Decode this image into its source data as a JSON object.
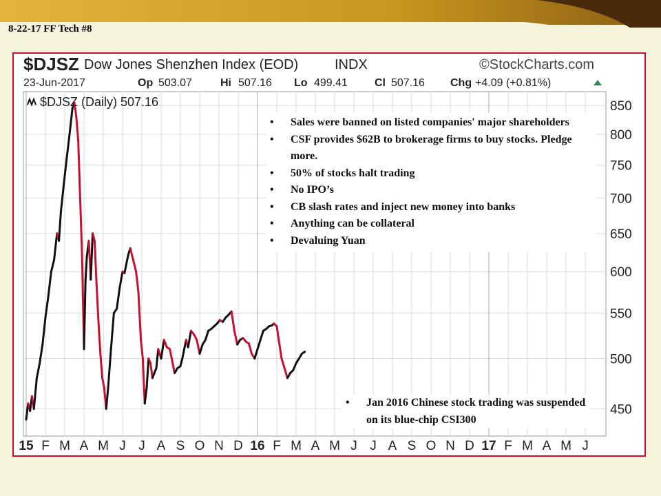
{
  "slide": {
    "label": "8-22-17 FF Tech #8"
  },
  "header": {
    "symbol": "$DJSZ",
    "name": "Dow Jones Shenzhen Index (EOD)",
    "exchange": "INDX",
    "source": "©StockCharts.com",
    "date": "23-Jun-2017",
    "op_label": "Op",
    "op": "503.07",
    "hi_label": "Hi",
    "hi": "507.16",
    "lo_label": "Lo",
    "lo": "499.41",
    "cl_label": "Cl",
    "cl": "507.16",
    "chg_label": "Chg",
    "chg": "+4.09 (+0.81%)"
  },
  "legend": {
    "text": "$DJSZ (Daily) 507.16"
  },
  "annotations": {
    "policies": [
      "Sales were banned on listed companies' major shareholders",
      "CSF provides $62B to brokerage firms to buy stocks. Pledge more.",
      "50% of stocks halt trading",
      "No IPO’s",
      "CB slash rates and inject new money into banks",
      "Anything  can be collateral",
      "Devaluing Yuan"
    ],
    "note": "Jan 2016 Chinese stock trading was suspended on its blue-chip CSI300"
  },
  "colors": {
    "up": "#111111",
    "down": "#c8102e",
    "frame": "#c8102e",
    "grid": "#d9d9d9",
    "chg_arrow": "#2e8b57"
  },
  "chart_data": {
    "type": "line",
    "title": "$DJSZ Dow Jones Shenzhen Index (EOD)",
    "series": [
      {
        "name": "$DJSZ (Daily) 507.16",
        "points": [
          [
            0.0,
            440
          ],
          [
            0.1,
            455
          ],
          [
            0.2,
            448
          ],
          [
            0.3,
            462
          ],
          [
            0.4,
            450
          ],
          [
            0.55,
            480
          ],
          [
            0.7,
            495
          ],
          [
            0.85,
            515
          ],
          [
            1.0,
            545
          ],
          [
            1.15,
            570
          ],
          [
            1.3,
            600
          ],
          [
            1.45,
            615
          ],
          [
            1.6,
            650
          ],
          [
            1.7,
            640
          ],
          [
            1.8,
            680
          ],
          [
            1.95,
            720
          ],
          [
            2.1,
            760
          ],
          [
            2.25,
            800
          ],
          [
            2.4,
            845
          ],
          [
            2.5,
            855
          ],
          [
            2.6,
            830
          ],
          [
            2.7,
            790
          ],
          [
            2.8,
            700
          ],
          [
            2.9,
            620
          ],
          [
            3.0,
            510
          ],
          [
            3.08,
            590
          ],
          [
            3.15,
            620
          ],
          [
            3.25,
            640
          ],
          [
            3.35,
            590
          ],
          [
            3.45,
            650
          ],
          [
            3.55,
            640
          ],
          [
            3.65,
            585
          ],
          [
            3.75,
            540
          ],
          [
            3.85,
            505
          ],
          [
            3.95,
            480
          ],
          [
            4.05,
            470
          ],
          [
            4.15,
            450
          ],
          [
            4.25,
            470
          ],
          [
            4.4,
            510
          ],
          [
            4.55,
            550
          ],
          [
            4.7,
            555
          ],
          [
            4.85,
            580
          ],
          [
            5.0,
            600
          ],
          [
            5.1,
            598
          ],
          [
            5.2,
            610
          ],
          [
            5.3,
            622
          ],
          [
            5.4,
            630
          ],
          [
            5.55,
            615
          ],
          [
            5.7,
            600
          ],
          [
            5.82,
            575
          ],
          [
            5.95,
            520
          ],
          [
            6.05,
            500
          ],
          [
            6.15,
            455
          ],
          [
            6.25,
            470
          ],
          [
            6.35,
            500
          ],
          [
            6.45,
            495
          ],
          [
            6.55,
            480
          ],
          [
            6.65,
            485
          ],
          [
            6.75,
            490
          ],
          [
            6.85,
            510
          ],
          [
            7.0,
            500
          ],
          [
            7.15,
            520
          ],
          [
            7.3,
            512
          ],
          [
            7.45,
            510
          ],
          [
            7.55,
            500
          ],
          [
            7.7,
            485
          ],
          [
            7.85,
            490
          ],
          [
            8.0,
            492
          ],
          [
            8.1,
            500
          ],
          [
            8.2,
            510
          ],
          [
            8.3,
            520
          ],
          [
            8.4,
            512
          ],
          [
            8.55,
            530
          ],
          [
            8.7,
            526
          ],
          [
            8.85,
            520
          ],
          [
            9.0,
            505
          ],
          [
            9.15,
            515
          ],
          [
            9.3,
            520
          ],
          [
            9.45,
            530
          ],
          [
            9.6,
            532
          ],
          [
            9.75,
            535
          ],
          [
            9.9,
            538
          ],
          [
            10.05,
            542
          ],
          [
            10.2,
            540
          ],
          [
            10.35,
            545
          ],
          [
            10.5,
            548
          ],
          [
            10.65,
            552
          ],
          [
            10.8,
            530
          ],
          [
            10.95,
            515
          ],
          [
            11.1,
            520
          ],
          [
            11.25,
            522
          ],
          [
            11.4,
            518
          ],
          [
            11.55,
            516
          ],
          [
            11.7,
            505
          ],
          [
            11.85,
            500
          ],
          [
            12.0,
            510
          ],
          [
            12.15,
            520
          ],
          [
            12.3,
            530
          ],
          [
            12.45,
            532
          ],
          [
            12.6,
            535
          ],
          [
            12.75,
            536
          ],
          [
            12.85,
            538
          ],
          [
            13.0,
            535
          ],
          [
            13.1,
            520
          ],
          [
            13.25,
            500
          ],
          [
            13.4,
            490
          ],
          [
            13.55,
            480
          ],
          [
            13.7,
            485
          ],
          [
            13.85,
            488
          ],
          [
            14.0,
            495
          ],
          [
            14.15,
            500
          ],
          [
            14.3,
            505
          ],
          [
            14.45,
            507.16
          ]
        ]
      }
    ],
    "x_ticks": [
      "15",
      "F",
      "M",
      "A",
      "M",
      "J",
      "J",
      "A",
      "S",
      "O",
      "N",
      "D",
      "16",
      "F",
      "M",
      "A",
      "M",
      "J",
      "J",
      "A",
      "S",
      "O",
      "N",
      "D",
      "17",
      "F",
      "M",
      "A",
      "M",
      "J"
    ],
    "y_ticks": [
      450,
      500,
      550,
      600,
      650,
      700,
      750,
      800,
      850
    ],
    "y_scale": "log",
    "ylim": [
      425,
      875
    ],
    "grid": true
  }
}
